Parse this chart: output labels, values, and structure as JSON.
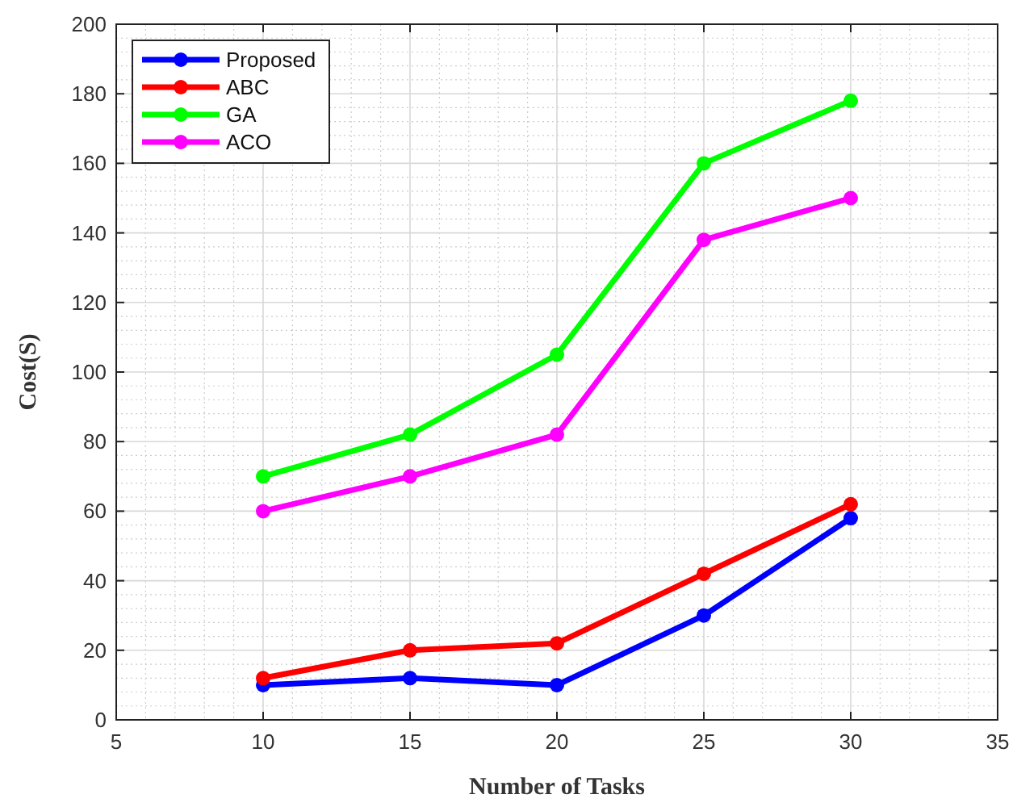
{
  "chart_data": {
    "type": "line",
    "xlabel": "Number of Tasks",
    "ylabel": "Cost(S)",
    "x": [
      10,
      15,
      20,
      25,
      30
    ],
    "series": [
      {
        "name": "Proposed",
        "color": "#0000ff",
        "values": [
          10,
          12,
          10,
          30,
          58
        ]
      },
      {
        "name": "ABC",
        "color": "#ff0000",
        "values": [
          12,
          20,
          22,
          42,
          62
        ]
      },
      {
        "name": "GA",
        "color": "#00ff00",
        "values": [
          70,
          82,
          105,
          160,
          178
        ]
      },
      {
        "name": "ACO",
        "color": "#ff00ff",
        "values": [
          60,
          70,
          82,
          138,
          150
        ]
      }
    ],
    "xlim": [
      5,
      35
    ],
    "xticks": [
      5,
      10,
      15,
      20,
      25,
      30,
      35
    ],
    "ylim": [
      0,
      200
    ],
    "yticks": [
      0,
      20,
      40,
      60,
      80,
      100,
      120,
      140,
      160,
      180,
      200
    ],
    "grid": true,
    "legend": "top left",
    "marker": "circle",
    "line_style": "solid"
  }
}
